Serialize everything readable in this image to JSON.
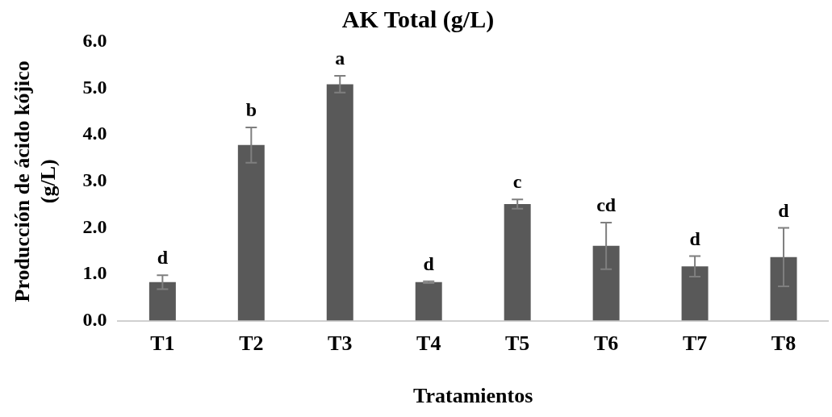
{
  "chart_data": {
    "type": "bar",
    "title": "AK Total (g/L)",
    "xlabel": "Tratamientos",
    "ylabel": "Producción de ácido kójico (g/L)",
    "categories": [
      "T1",
      "T2",
      "T3",
      "T4",
      "T5",
      "T6",
      "T7",
      "T8"
    ],
    "values": [
      0.83,
      3.78,
      5.09,
      0.83,
      2.51,
      1.61,
      1.17,
      1.37
    ],
    "errors": [
      0.15,
      0.38,
      0.18,
      0.02,
      0.1,
      0.5,
      0.22,
      0.63
    ],
    "color": "#595959",
    "ylim": [
      0,
      6
    ],
    "yticks": [
      {
        "value": 0,
        "label": "0.0"
      },
      {
        "value": 1,
        "label": "1.0"
      },
      {
        "value": 2,
        "label": "2.0"
      },
      {
        "value": 3,
        "label": "3.0"
      },
      {
        "value": 4,
        "label": "4.0"
      },
      {
        "value": 5,
        "label": "5.0"
      },
      {
        "value": 6,
        "label": "6.0"
      }
    ],
    "grid": false,
    "legend": false,
    "value_labels": [
      "d",
      "b",
      "a",
      "d",
      "c",
      "cd",
      "d",
      "d"
    ]
  }
}
